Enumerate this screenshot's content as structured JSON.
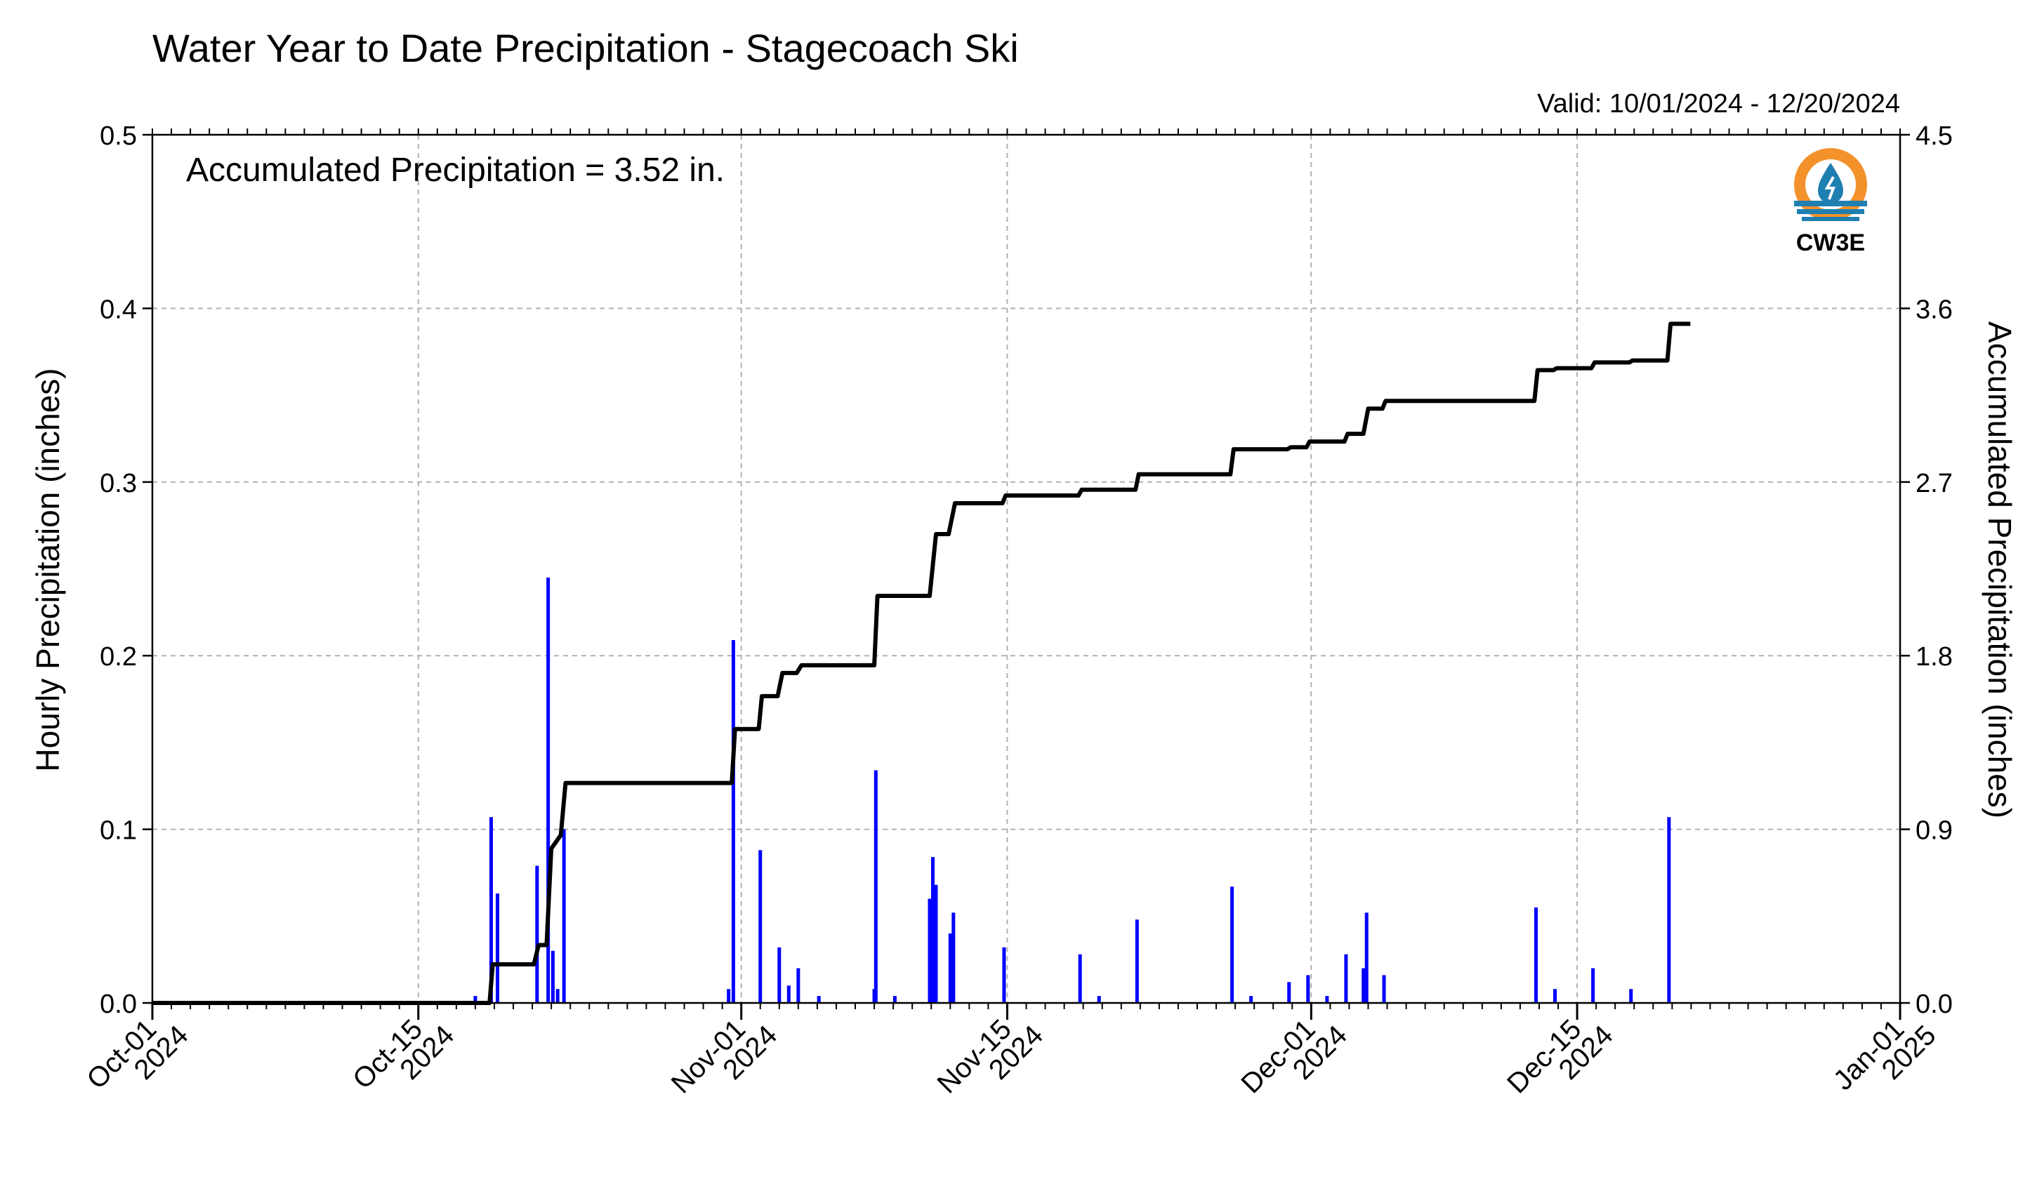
{
  "colors": {
    "bars": "#0000ff",
    "line": "#000000",
    "grid": "#b0b0b0",
    "left_axis_label": "#0000ff",
    "logo_orange": "#f3922b",
    "logo_teal": "#1f7fb0"
  },
  "logo": {
    "text": "CW3E",
    "icon": "water-drop-sun-icon"
  },
  "chart_data": {
    "type": "bar",
    "title": "Water Year to Date Precipitation - Stagecoach Ski",
    "subtitle": "Valid: 10/01/2024 - 12/20/2024",
    "annotation": "Accumulated Precipitation = 3.52 in.",
    "ylabel": "Hourly Precipitation (inches)",
    "ylabel_right": "Accumulated Precipitation (inches)",
    "ylim": [
      0,
      0.5
    ],
    "ylim_right": [
      0,
      4.5
    ],
    "xlim": [
      "2024-10-01",
      "2025-01-01"
    ],
    "grid": true,
    "y_ticks": [
      "0.0",
      "0.1",
      "0.2",
      "0.3",
      "0.4",
      "0.5"
    ],
    "y_ticks_right": [
      "0.0",
      "0.9",
      "1.8",
      "2.7",
      "3.6",
      "4.5"
    ],
    "x_ticks": [
      {
        "date": "2024-10-01",
        "line1": "Oct-01",
        "line2": "2024"
      },
      {
        "date": "2024-10-15",
        "line1": "Oct-15",
        "line2": "2024"
      },
      {
        "date": "2024-11-01",
        "line1": "Nov-01",
        "line2": "2024"
      },
      {
        "date": "2024-11-15",
        "line1": "Nov-15",
        "line2": "2024"
      },
      {
        "date": "2024-12-01",
        "line1": "Dec-01",
        "line2": "2024"
      },
      {
        "date": "2024-12-15",
        "line1": "Dec-15",
        "line2": "2024"
      },
      {
        "date": "2025-01-01",
        "line1": "Jan-01",
        "line2": "2025"
      }
    ],
    "series": [
      {
        "name": "Hourly Precipitation",
        "kind": "bar",
        "axis": "left",
        "points": [
          {
            "x": "2024-10-18 00:00",
            "y": 0.004
          },
          {
            "x": "2024-10-18 20:00",
            "y": 0.107
          },
          {
            "x": "2024-10-19 04:00",
            "y": 0.063
          },
          {
            "x": "2024-10-21 06:00",
            "y": 0.079
          },
          {
            "x": "2024-10-21 20:00",
            "y": 0.245
          },
          {
            "x": "2024-10-22 02:00",
            "y": 0.03
          },
          {
            "x": "2024-10-22 08:00",
            "y": 0.008
          },
          {
            "x": "2024-10-22 16:00",
            "y": 0.1
          },
          {
            "x": "2024-10-31 08:00",
            "y": 0.008
          },
          {
            "x": "2024-10-31 14:00",
            "y": 0.209
          },
          {
            "x": "2024-11-02 00:00",
            "y": 0.088
          },
          {
            "x": "2024-11-03 00:00",
            "y": 0.032
          },
          {
            "x": "2024-11-03 12:00",
            "y": 0.01
          },
          {
            "x": "2024-11-04 00:00",
            "y": 0.02
          },
          {
            "x": "2024-11-05 02:00",
            "y": 0.004
          },
          {
            "x": "2024-11-08 00:00",
            "y": 0.008
          },
          {
            "x": "2024-11-08 02:00",
            "y": 0.134
          },
          {
            "x": "2024-11-09 02:00",
            "y": 0.004
          },
          {
            "x": "2024-11-10 22:00",
            "y": 0.06
          },
          {
            "x": "2024-11-11 02:00",
            "y": 0.084
          },
          {
            "x": "2024-11-11 06:00",
            "y": 0.068
          },
          {
            "x": "2024-11-12 00:00",
            "y": 0.04
          },
          {
            "x": "2024-11-12 04:00",
            "y": 0.052
          },
          {
            "x": "2024-11-14 20:00",
            "y": 0.032
          },
          {
            "x": "2024-11-18 20:00",
            "y": 0.028
          },
          {
            "x": "2024-11-19 20:00",
            "y": 0.004
          },
          {
            "x": "2024-11-21 20:00",
            "y": 0.048
          },
          {
            "x": "2024-11-26 20:00",
            "y": 0.067
          },
          {
            "x": "2024-11-27 20:00",
            "y": 0.004
          },
          {
            "x": "2024-11-29 20:00",
            "y": 0.012
          },
          {
            "x": "2024-11-30 20:00",
            "y": 0.016
          },
          {
            "x": "2024-12-01 20:00",
            "y": 0.004
          },
          {
            "x": "2024-12-02 20:00",
            "y": 0.028
          },
          {
            "x": "2024-12-03 18:00",
            "y": 0.02
          },
          {
            "x": "2024-12-03 22:00",
            "y": 0.052
          },
          {
            "x": "2024-12-04 20:00",
            "y": 0.016
          },
          {
            "x": "2024-12-12 20:00",
            "y": 0.055
          },
          {
            "x": "2024-12-13 20:00",
            "y": 0.008
          },
          {
            "x": "2024-12-15 20:00",
            "y": 0.02
          },
          {
            "x": "2024-12-17 20:00",
            "y": 0.008
          },
          {
            "x": "2024-12-19 20:00",
            "y": 0.107
          }
        ]
      },
      {
        "name": "Accumulated Precipitation",
        "kind": "step-line",
        "axis": "right",
        "points": [
          {
            "x": "2024-10-01 00:00",
            "y": 0.0
          },
          {
            "x": "2024-10-18 18:00",
            "y": 0.0
          },
          {
            "x": "2024-10-18 22:00",
            "y": 0.2
          },
          {
            "x": "2024-10-21 02:00",
            "y": 0.2
          },
          {
            "x": "2024-10-21 08:00",
            "y": 0.3
          },
          {
            "x": "2024-10-21 18:00",
            "y": 0.3
          },
          {
            "x": "2024-10-22 00:00",
            "y": 0.8
          },
          {
            "x": "2024-10-22 12:00",
            "y": 0.87
          },
          {
            "x": "2024-10-22 18:00",
            "y": 1.14
          },
          {
            "x": "2024-10-31 12:00",
            "y": 1.14
          },
          {
            "x": "2024-10-31 16:00",
            "y": 1.42
          },
          {
            "x": "2024-11-01 22:00",
            "y": 1.42
          },
          {
            "x": "2024-11-02 02:00",
            "y": 1.59
          },
          {
            "x": "2024-11-02 22:00",
            "y": 1.59
          },
          {
            "x": "2024-11-03 04:00",
            "y": 1.71
          },
          {
            "x": "2024-11-03 22:00",
            "y": 1.71
          },
          {
            "x": "2024-11-04 04:00",
            "y": 1.75
          },
          {
            "x": "2024-11-08 00:00",
            "y": 1.75
          },
          {
            "x": "2024-11-08 04:00",
            "y": 2.11
          },
          {
            "x": "2024-11-10 22:00",
            "y": 2.11
          },
          {
            "x": "2024-11-11 06:00",
            "y": 2.43
          },
          {
            "x": "2024-11-11 22:00",
            "y": 2.43
          },
          {
            "x": "2024-11-12 06:00",
            "y": 2.59
          },
          {
            "x": "2024-11-14 18:00",
            "y": 2.59
          },
          {
            "x": "2024-11-14 22:00",
            "y": 2.63
          },
          {
            "x": "2024-11-18 18:00",
            "y": 2.63
          },
          {
            "x": "2024-11-18 22:00",
            "y": 2.66
          },
          {
            "x": "2024-11-21 18:00",
            "y": 2.66
          },
          {
            "x": "2024-11-21 22:00",
            "y": 2.74
          },
          {
            "x": "2024-11-26 18:00",
            "y": 2.74
          },
          {
            "x": "2024-11-26 22:00",
            "y": 2.87
          },
          {
            "x": "2024-11-29 18:00",
            "y": 2.87
          },
          {
            "x": "2024-11-29 22:00",
            "y": 2.88
          },
          {
            "x": "2024-11-30 18:00",
            "y": 2.88
          },
          {
            "x": "2024-11-30 22:00",
            "y": 2.91
          },
          {
            "x": "2024-12-02 18:00",
            "y": 2.91
          },
          {
            "x": "2024-12-02 22:00",
            "y": 2.95
          },
          {
            "x": "2024-12-03 18:00",
            "y": 2.95
          },
          {
            "x": "2024-12-04 00:00",
            "y": 3.08
          },
          {
            "x": "2024-12-04 18:00",
            "y": 3.08
          },
          {
            "x": "2024-12-04 22:00",
            "y": 3.12
          },
          {
            "x": "2024-12-12 18:00",
            "y": 3.12
          },
          {
            "x": "2024-12-12 22:00",
            "y": 3.28
          },
          {
            "x": "2024-12-13 18:00",
            "y": 3.28
          },
          {
            "x": "2024-12-13 22:00",
            "y": 3.29
          },
          {
            "x": "2024-12-15 18:00",
            "y": 3.29
          },
          {
            "x": "2024-12-15 22:00",
            "y": 3.32
          },
          {
            "x": "2024-12-17 18:00",
            "y": 3.32
          },
          {
            "x": "2024-12-17 22:00",
            "y": 3.33
          },
          {
            "x": "2024-12-19 18:00",
            "y": 3.33
          },
          {
            "x": "2024-12-19 22:00",
            "y": 3.52
          },
          {
            "x": "2024-12-20 23:00",
            "y": 3.52
          }
        ]
      }
    ]
  }
}
